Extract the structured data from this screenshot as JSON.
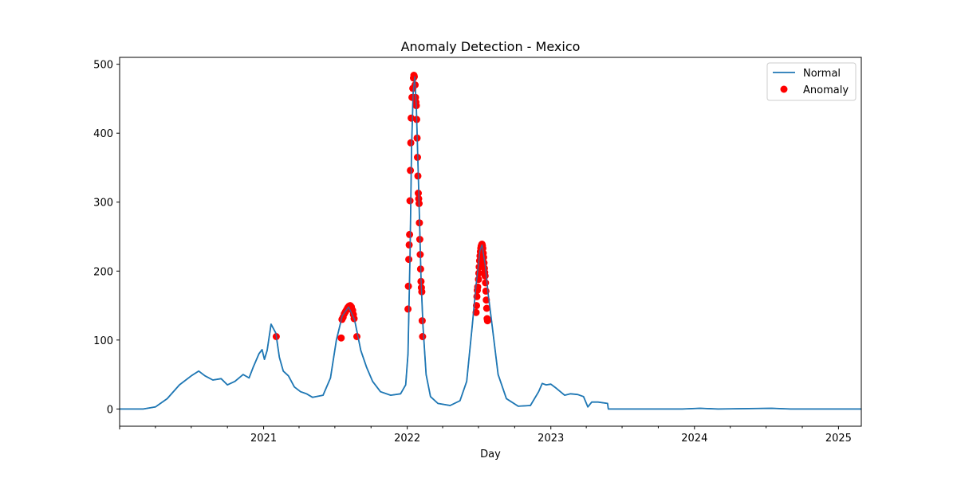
{
  "chart_data": {
    "type": "line",
    "title": "Anomaly Detection - Mexico",
    "xlabel": "Day",
    "ylabel": "",
    "xlim": [
      "2020-01-01",
      "2025-02-28"
    ],
    "ylim": [
      -25,
      510
    ],
    "grid": false,
    "legend_position": "top-right",
    "x_ticks": [
      {
        "date": "2021-01-01",
        "label": "2021"
      },
      {
        "date": "2022-01-01",
        "label": "2022"
      },
      {
        "date": "2023-01-01",
        "label": "2023"
      },
      {
        "date": "2024-01-01",
        "label": "2024"
      },
      {
        "date": "2025-01-01",
        "label": "2025"
      }
    ],
    "y_ticks": [
      0,
      100,
      200,
      300,
      400,
      500
    ],
    "series": [
      {
        "name": "Normal",
        "kind": "line",
        "color": "#1f77b4",
        "points": [
          [
            "2020-01-01",
            0
          ],
          [
            "2020-03-01",
            0
          ],
          [
            "2020-04-01",
            3
          ],
          [
            "2020-05-01",
            15
          ],
          [
            "2020-06-01",
            35
          ],
          [
            "2020-07-01",
            48
          ],
          [
            "2020-07-20",
            55
          ],
          [
            "2020-08-05",
            48
          ],
          [
            "2020-08-25",
            42
          ],
          [
            "2020-09-15",
            44
          ],
          [
            "2020-10-01",
            35
          ],
          [
            "2020-10-20",
            40
          ],
          [
            "2020-11-10",
            50
          ],
          [
            "2020-11-25",
            45
          ],
          [
            "2020-12-05",
            60
          ],
          [
            "2020-12-20",
            80
          ],
          [
            "2020-12-28",
            86
          ],
          [
            "2021-01-03",
            72
          ],
          [
            "2021-01-10",
            85
          ],
          [
            "2021-01-20",
            123
          ],
          [
            "2021-02-01",
            110
          ],
          [
            "2021-02-10",
            75
          ],
          [
            "2021-02-20",
            55
          ],
          [
            "2021-03-05",
            48
          ],
          [
            "2021-03-20",
            32
          ],
          [
            "2021-04-05",
            25
          ],
          [
            "2021-04-20",
            22
          ],
          [
            "2021-05-05",
            17
          ],
          [
            "2021-06-01",
            20
          ],
          [
            "2021-06-20",
            45
          ],
          [
            "2021-07-05",
            100
          ],
          [
            "2021-07-20",
            135
          ],
          [
            "2021-08-05",
            148
          ],
          [
            "2021-08-20",
            130
          ],
          [
            "2021-09-05",
            85
          ],
          [
            "2021-09-20",
            60
          ],
          [
            "2021-10-05",
            40
          ],
          [
            "2021-10-25",
            25
          ],
          [
            "2021-11-20",
            20
          ],
          [
            "2021-12-15",
            22
          ],
          [
            "2021-12-28",
            35
          ],
          [
            "2022-01-03",
            80
          ],
          [
            "2022-01-08",
            220
          ],
          [
            "2022-01-12",
            380
          ],
          [
            "2022-01-16",
            460
          ],
          [
            "2022-01-20",
            482
          ],
          [
            "2022-01-24",
            440
          ],
          [
            "2022-01-28",
            360
          ],
          [
            "2022-02-01",
            280
          ],
          [
            "2022-02-05",
            190
          ],
          [
            "2022-02-10",
            120
          ],
          [
            "2022-02-18",
            50
          ],
          [
            "2022-03-01",
            18
          ],
          [
            "2022-03-20",
            8
          ],
          [
            "2022-04-20",
            5
          ],
          [
            "2022-05-15",
            12
          ],
          [
            "2022-06-01",
            40
          ],
          [
            "2022-06-15",
            120
          ],
          [
            "2022-06-25",
            180
          ],
          [
            "2022-07-05",
            230
          ],
          [
            "2022-07-10",
            238
          ],
          [
            "2022-07-18",
            210
          ],
          [
            "2022-07-26",
            165
          ],
          [
            "2022-08-05",
            120
          ],
          [
            "2022-08-20",
            50
          ],
          [
            "2022-09-10",
            15
          ],
          [
            "2022-10-10",
            4
          ],
          [
            "2022-11-10",
            5
          ],
          [
            "2022-12-01",
            25
          ],
          [
            "2022-12-10",
            37
          ],
          [
            "2022-12-20",
            35
          ],
          [
            "2023-01-01",
            36
          ],
          [
            "2023-01-15",
            30
          ],
          [
            "2023-02-05",
            20
          ],
          [
            "2023-02-20",
            22
          ],
          [
            "2023-03-10",
            21
          ],
          [
            "2023-03-25",
            18
          ],
          [
            "2023-04-05",
            3
          ],
          [
            "2023-04-15",
            10
          ],
          [
            "2023-05-01",
            10
          ],
          [
            "2023-05-25",
            8
          ],
          [
            "2023-05-27",
            0
          ],
          [
            "2023-12-01",
            0
          ],
          [
            "2024-01-15",
            1
          ],
          [
            "2024-03-01",
            0
          ],
          [
            "2024-07-15",
            1
          ],
          [
            "2024-09-01",
            0
          ],
          [
            "2025-02-28",
            0
          ]
        ]
      },
      {
        "name": "Anomaly",
        "kind": "scatter",
        "color": "#ff0000",
        "points": [
          [
            "2021-02-02",
            105
          ],
          [
            "2021-07-17",
            103
          ],
          [
            "2021-07-19",
            130
          ],
          [
            "2021-07-22",
            133
          ],
          [
            "2021-07-25",
            138
          ],
          [
            "2021-07-28",
            141
          ],
          [
            "2021-07-31",
            144
          ],
          [
            "2021-08-03",
            147
          ],
          [
            "2021-08-06",
            149
          ],
          [
            "2021-08-09",
            150
          ],
          [
            "2021-08-12",
            148
          ],
          [
            "2021-08-15",
            143
          ],
          [
            "2021-08-17",
            137
          ],
          [
            "2021-08-19",
            131
          ],
          [
            "2021-08-26",
            105
          ],
          [
            "2022-01-03",
            145
          ],
          [
            "2022-01-04",
            178
          ],
          [
            "2022-01-05",
            217
          ],
          [
            "2022-01-06",
            238
          ],
          [
            "2022-01-07",
            253
          ],
          [
            "2022-01-08",
            302
          ],
          [
            "2022-01-09",
            346
          ],
          [
            "2022-01-10",
            386
          ],
          [
            "2022-01-11",
            422
          ],
          [
            "2022-01-13",
            452
          ],
          [
            "2022-01-15",
            465
          ],
          [
            "2022-01-17",
            480
          ],
          [
            "2022-01-18",
            484
          ],
          [
            "2022-01-19",
            482
          ],
          [
            "2022-01-21",
            470
          ],
          [
            "2022-01-22",
            452
          ],
          [
            "2022-01-23",
            445
          ],
          [
            "2022-01-24",
            440
          ],
          [
            "2022-01-25",
            420
          ],
          [
            "2022-01-26",
            393
          ],
          [
            "2022-01-27",
            365
          ],
          [
            "2022-01-28",
            338
          ],
          [
            "2022-01-29",
            313
          ],
          [
            "2022-01-30",
            305
          ],
          [
            "2022-01-31",
            298
          ],
          [
            "2022-02-01",
            270
          ],
          [
            "2022-02-02",
            246
          ],
          [
            "2022-02-03",
            224
          ],
          [
            "2022-02-04",
            203
          ],
          [
            "2022-02-05",
            185
          ],
          [
            "2022-02-06",
            176
          ],
          [
            "2022-02-07",
            170
          ],
          [
            "2022-02-08",
            128
          ],
          [
            "2022-02-09",
            105
          ],
          [
            "2022-06-25",
            140
          ],
          [
            "2022-06-26",
            150
          ],
          [
            "2022-06-27",
            163
          ],
          [
            "2022-06-28",
            172
          ],
          [
            "2022-06-29",
            177
          ],
          [
            "2022-07-01",
            188
          ],
          [
            "2022-07-02",
            197
          ],
          [
            "2022-07-03",
            206
          ],
          [
            "2022-07-04",
            215
          ],
          [
            "2022-07-05",
            222
          ],
          [
            "2022-07-06",
            228
          ],
          [
            "2022-07-07",
            233
          ],
          [
            "2022-07-08",
            236
          ],
          [
            "2022-07-09",
            238
          ],
          [
            "2022-07-10",
            239
          ],
          [
            "2022-07-11",
            237
          ],
          [
            "2022-07-12",
            233
          ],
          [
            "2022-07-13",
            226
          ],
          [
            "2022-07-14",
            220
          ],
          [
            "2022-07-15",
            212
          ],
          [
            "2022-07-16",
            204
          ],
          [
            "2022-07-17",
            198
          ],
          [
            "2022-07-18",
            193
          ],
          [
            "2022-07-19",
            183
          ],
          [
            "2022-07-20",
            171
          ],
          [
            "2022-07-21",
            158
          ],
          [
            "2022-07-22",
            146
          ],
          [
            "2022-07-23",
            131
          ],
          [
            "2022-07-24",
            128
          ]
        ]
      }
    ]
  }
}
